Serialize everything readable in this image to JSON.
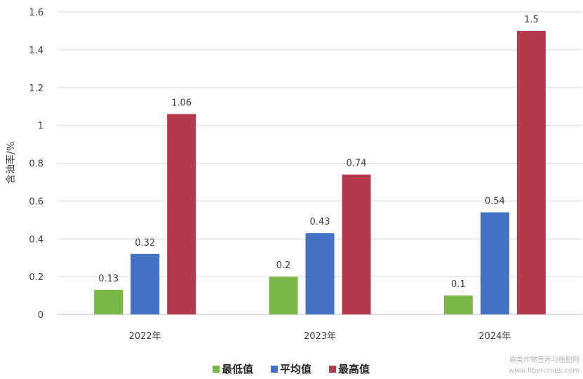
{
  "chart_data": {
    "type": "bar",
    "categories": [
      "2022年",
      "2023年",
      "2024年"
    ],
    "series": [
      {
        "name": "最低值",
        "values": [
          0.13,
          0.2,
          0.1
        ],
        "color": "#7ab648"
      },
      {
        "name": "平均值",
        "values": [
          0.32,
          0.43,
          0.54
        ],
        "color": "#4472c4"
      },
      {
        "name": "最高值",
        "values": [
          1.06,
          0.74,
          1.5
        ],
        "color": "#b53a4e"
      }
    ],
    "data_labels": [
      [
        "0.13",
        "0.2",
        "0.1"
      ],
      [
        "0.32",
        "0.43",
        "0.54"
      ],
      [
        "1.06",
        "0.74",
        "1.5"
      ]
    ],
    "ylabel": "含油率/%",
    "xlabel": "",
    "ylim": [
      0,
      1.6
    ],
    "yticks": [
      0,
      0.2,
      0.4,
      0.6,
      0.8,
      1,
      1.2,
      1.4,
      1.6
    ],
    "ytick_labels": [
      "0",
      "0.2",
      "0.4",
      "0.6",
      "0.8",
      "1",
      "1.2",
      "1.4",
      "1.6"
    ],
    "grid": true,
    "legend_position": "bottom"
  },
  "watermark": {
    "line1": "麻类作物营养与施肥网",
    "line2": "www.fibercrops.com"
  },
  "colors": {
    "grid": "#d9d9d9",
    "axis": "#bfbfbf"
  }
}
